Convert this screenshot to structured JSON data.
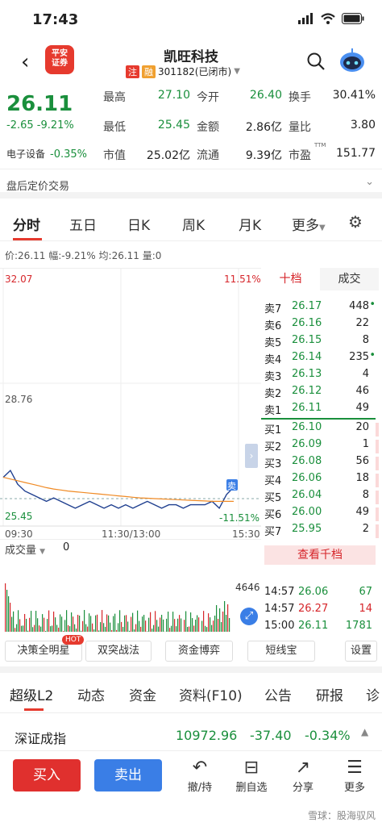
{
  "status_bar": {
    "time": "17:43"
  },
  "header": {
    "logo_text_1": "平安",
    "logo_text_2": "证券",
    "stock_name": "凯旺科技",
    "tag_zhu": "注",
    "tag_rong": "融",
    "code_status": "301182(已闭市)"
  },
  "quote": {
    "price": "26.11",
    "change": "-2.65 -9.21%",
    "sector_label": "电子设备",
    "sector_change": "-0.35%",
    "fields": [
      {
        "k": "最高",
        "v": "27.10",
        "color": "green"
      },
      {
        "k": "今开",
        "v": "26.40",
        "color": "green"
      },
      {
        "k": "换手",
        "v": "30.41%",
        "color": "black"
      },
      {
        "k": "最低",
        "v": "25.45",
        "color": "green"
      },
      {
        "k": "金额",
        "v": "2.86亿",
        "color": "black"
      },
      {
        "k": "量比",
        "v": "3.80",
        "color": "black"
      },
      {
        "k": "市值",
        "v": "25.02亿",
        "color": "black"
      },
      {
        "k": "流通",
        "v": "9.39亿",
        "color": "black"
      },
      {
        "k": "市盈",
        "v": "151.77",
        "color": "black"
      }
    ],
    "pe_sup": "TTM"
  },
  "after_hours": {
    "label": "盘后定价交易"
  },
  "tabs": [
    "分时",
    "五日",
    "日K",
    "周K",
    "月K",
    "更多"
  ],
  "info_line": "价:26.11  幅:-9.21%  均:26.11  量:0",
  "chart": {
    "y_top": "32.07",
    "y_mid": "28.76",
    "y_bottom": "25.45",
    "pct_top": "11.51%",
    "pct_bottom": "-11.51%",
    "x_start": "09:30",
    "x_mid": "11:30/13:00",
    "x_end": "15:30",
    "sell_marker": "卖",
    "volume_label": "成交量",
    "volume_value": "0",
    "volume_max": "4646"
  },
  "chart_data": {
    "type": "line",
    "ylim": [
      25.45,
      32.07
    ],
    "series": [
      {
        "values": [
          26.4,
          26.6,
          26.2,
          26.0,
          25.9,
          25.8,
          25.7,
          25.8,
          25.7,
          25.6,
          25.5,
          25.6,
          25.7,
          25.6,
          25.5,
          25.6,
          25.5,
          25.6,
          25.5,
          25.6,
          25.7,
          25.6,
          25.5,
          25.6,
          25.6,
          25.5,
          25.6,
          25.6,
          25.6,
          25.7,
          25.5,
          25.9,
          26.11
        ]
      },
      {
        "values": [
          26.4,
          26.35,
          26.3,
          26.25,
          26.2,
          26.15,
          26.1,
          26.06,
          26.03,
          26.0,
          25.98,
          25.96,
          25.94,
          25.92,
          25.9,
          25.88,
          25.86,
          25.84,
          25.82,
          25.8,
          25.79,
          25.78,
          25.77,
          25.76,
          25.75,
          25.74,
          25.73,
          25.72,
          25.71,
          25.7,
          25.7,
          25.7,
          25.7
        ]
      }
    ]
  },
  "orderbook": {
    "tabs": [
      "十档",
      "成交"
    ],
    "asks": [
      {
        "n": "卖7",
        "p": "26.17",
        "v": "448",
        "dot": "•"
      },
      {
        "n": "卖6",
        "p": "26.16",
        "v": "22",
        "dot": ""
      },
      {
        "n": "卖5",
        "p": "26.15",
        "v": "8",
        "dot": ""
      },
      {
        "n": "卖4",
        "p": "26.14",
        "v": "235",
        "dot": "•"
      },
      {
        "n": "卖3",
        "p": "26.13",
        "v": "4",
        "dot": ""
      },
      {
        "n": "卖2",
        "p": "26.12",
        "v": "46",
        "dot": ""
      },
      {
        "n": "卖1",
        "p": "26.11",
        "v": "49",
        "dot": ""
      }
    ],
    "bids": [
      {
        "n": "买1",
        "p": "26.10",
        "v": "20"
      },
      {
        "n": "买2",
        "p": "26.09",
        "v": "1"
      },
      {
        "n": "买3",
        "p": "26.08",
        "v": "56"
      },
      {
        "n": "买4",
        "p": "26.06",
        "v": "18"
      },
      {
        "n": "买5",
        "p": "26.04",
        "v": "8"
      },
      {
        "n": "买6",
        "p": "26.00",
        "v": "49"
      },
      {
        "n": "买7",
        "p": "25.95",
        "v": "2"
      }
    ],
    "view_all": "查看千档",
    "trades": [
      {
        "t": "14:57",
        "p": "26.06",
        "v": "67",
        "c": "green"
      },
      {
        "t": "14:57",
        "p": "26.27",
        "v": "14",
        "c": "red"
      },
      {
        "t": "15:00",
        "p": "26.11",
        "v": "1781",
        "c": "green"
      }
    ]
  },
  "tools": {
    "b1": "决策全明星",
    "hot": "HOT",
    "b2": "双突战法",
    "b3": "资金博弈",
    "b4": "短线宝",
    "b5": "设置"
  },
  "tabs2": [
    "超级L2",
    "动态",
    "资金",
    "资料(F10)",
    "公告",
    "研报",
    "诊"
  ],
  "index": {
    "name": "深证成指",
    "value": "10972.96",
    "change": "-37.40",
    "pct": "-0.34%"
  },
  "bottom": {
    "buy": "买入",
    "sell": "卖出",
    "i1": "撤/持",
    "i2": "删自选",
    "i3": "分享",
    "i4": "更多"
  },
  "watermark": "雪球：股海驭风"
}
